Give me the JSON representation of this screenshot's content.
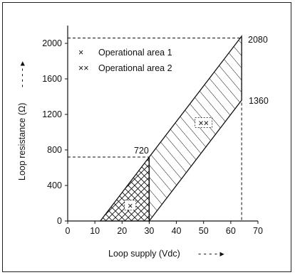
{
  "chart_data": {
    "type": "area",
    "xlabel": "Loop supply (Vdc)",
    "xlabel_arrow": "- - - - ▸",
    "ylabel": "Loop resistance (Ω)",
    "ylabel_arrow": "- - - - ▸",
    "xlim": [
      0,
      70
    ],
    "ylim": [
      0,
      2200
    ],
    "x_ticks": [
      0,
      10,
      20,
      30,
      40,
      50,
      60,
      70
    ],
    "x_tick_labels": [
      "0",
      "10",
      "20",
      "30",
      "40",
      "50",
      "60",
      "70"
    ],
    "y_ticks": [
      0,
      400,
      800,
      1200,
      1600,
      2000
    ],
    "y_tick_labels": [
      "0",
      "400",
      "800",
      "1200",
      "1600",
      "2000"
    ],
    "grid": false,
    "legend_position": "top-left",
    "legend": [
      {
        "marker": "×",
        "label": "Operational area 1",
        "pattern": "diagonal-hatch"
      },
      {
        "marker": "××",
        "label": "Operational area 2",
        "pattern": "cross-hatch"
      }
    ],
    "series": [
      {
        "name": "Operational area 1",
        "polygon": [
          [
            30,
            0
          ],
          [
            30,
            720
          ],
          [
            64,
            2080
          ],
          [
            64,
            1360
          ]
        ]
      },
      {
        "name": "Operational area 2",
        "polygon": [
          [
            12,
            0
          ],
          [
            30,
            0
          ],
          [
            30,
            720
          ]
        ]
      }
    ],
    "reference_lines": [
      {
        "from": [
          0,
          720
        ],
        "to": [
          30,
          720
        ]
      },
      {
        "from": [
          30,
          720
        ],
        "to": [
          30,
          0
        ]
      },
      {
        "from": [
          0,
          2060
        ],
        "to": [
          64,
          2060
        ]
      },
      {
        "from": [
          64,
          2060
        ],
        "to": [
          64,
          0
        ]
      }
    ],
    "annotations": [
      {
        "text": "2080",
        "x": 64,
        "y": 2080
      },
      {
        "text": "1360",
        "x": 64,
        "y": 1360
      },
      {
        "text": "720",
        "x": 30,
        "y": 720
      }
    ],
    "area_markers": [
      {
        "text": "××",
        "x": 50,
        "y": 1100
      },
      {
        "text": "×",
        "x": 23,
        "y": 170
      }
    ]
  }
}
